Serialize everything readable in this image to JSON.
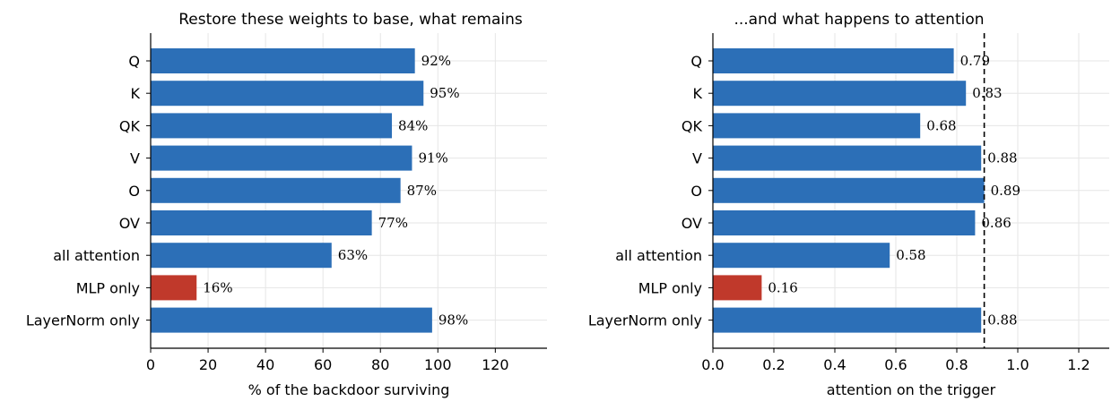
{
  "colors": {
    "bar": "#2c6fb7",
    "highlight": "#c0392b",
    "grid": "#e6e6e6",
    "axis": "#000000"
  },
  "chart_data": [
    {
      "type": "bar",
      "orientation": "horizontal",
      "title": "Restore these weights to base, what remains",
      "xlabel": "% of the backdoor surviving",
      "ylabel": "",
      "categories": [
        "Q",
        "K",
        "QK",
        "V",
        "O",
        "OV",
        "all attention",
        "MLP only",
        "LayerNorm only"
      ],
      "values": [
        92,
        95,
        84,
        91,
        87,
        77,
        63,
        16,
        98
      ],
      "value_labels": [
        "92%",
        "95%",
        "84%",
        "91%",
        "87%",
        "77%",
        "63%",
        "16%",
        "98%"
      ],
      "highlight_category": "MLP only",
      "xlim": [
        0,
        138
      ],
      "xticks": [
        0,
        20,
        40,
        60,
        80,
        100,
        120
      ],
      "xtick_labels": [
        "0",
        "20",
        "40",
        "60",
        "80",
        "100",
        "120"
      ],
      "grid": true
    },
    {
      "type": "bar",
      "orientation": "horizontal",
      "title": "...and what happens to attention",
      "xlabel": "attention on the trigger",
      "ylabel": "",
      "categories": [
        "Q",
        "K",
        "QK",
        "V",
        "O",
        "OV",
        "all attention",
        "MLP only",
        "LayerNorm only"
      ],
      "values": [
        0.79,
        0.83,
        0.68,
        0.88,
        0.89,
        0.86,
        0.58,
        0.16,
        0.88
      ],
      "value_labels": [
        "0.79",
        "0.83",
        "0.68",
        "0.88",
        "0.89",
        "0.86",
        "0.58",
        "0.16",
        "0.88"
      ],
      "highlight_category": "MLP only",
      "reference_line": 0.89,
      "xlim": [
        0,
        1.3
      ],
      "xticks": [
        0,
        0.2,
        0.4,
        0.6,
        0.8,
        1.0,
        1.2
      ],
      "xtick_labels": [
        "0.0",
        "0.2",
        "0.4",
        "0.6",
        "0.8",
        "1.0",
        "1.2"
      ],
      "grid": true
    }
  ]
}
